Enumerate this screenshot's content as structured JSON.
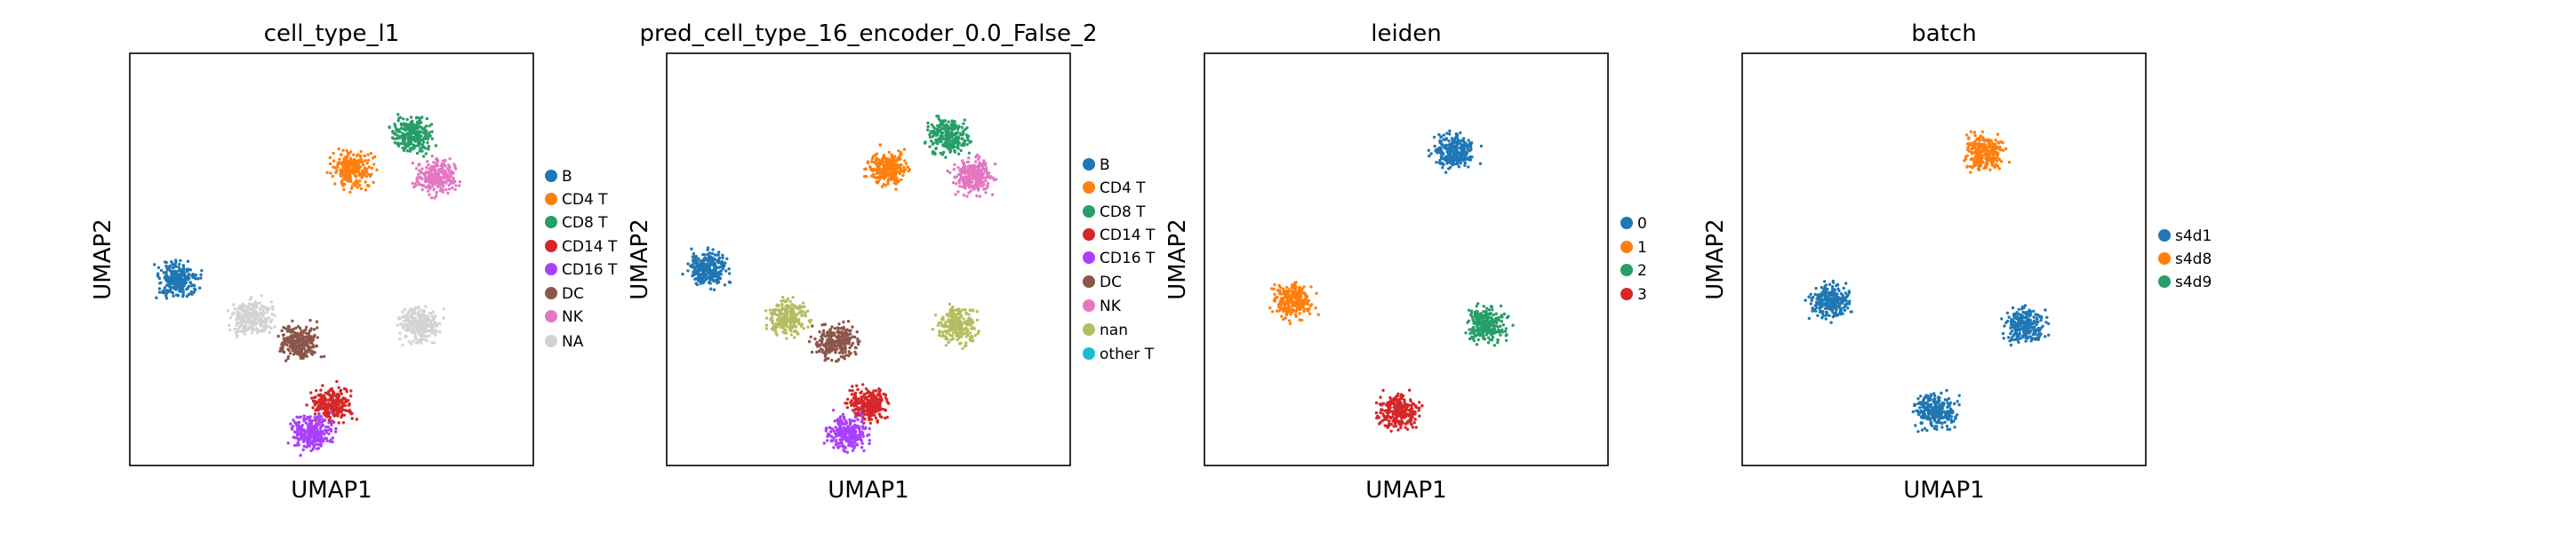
{
  "chart_data": [
    {
      "type": "scatter",
      "title": "cell_type_l1",
      "xlabel": "UMAP1",
      "ylabel": "UMAP2",
      "grid": false,
      "legend_position": "right",
      "categories": [
        {
          "label": "B",
          "color": "#1f77b4"
        },
        {
          "label": "CD4 T",
          "color": "#ff7f0e"
        },
        {
          "label": "CD8 T",
          "color": "#279e68"
        },
        {
          "label": "CD14 T",
          "color": "#d62728"
        },
        {
          "label": "CD16 T",
          "color": "#aa40fc"
        },
        {
          "label": "DC",
          "color": "#8c564b"
        },
        {
          "label": "NK",
          "color": "#e377c2"
        },
        {
          "label": "NA",
          "color": "#d3d3d3"
        }
      ],
      "clusters": [
        {
          "category": "CD4 T",
          "x": 0.55,
          "y": 0.72
        },
        {
          "category": "CD8 T",
          "x": 0.7,
          "y": 0.8
        },
        {
          "category": "NK",
          "x": 0.76,
          "y": 0.7
        },
        {
          "category": "B",
          "x": 0.12,
          "y": 0.45
        },
        {
          "category": "NA",
          "x": 0.3,
          "y": 0.36
        },
        {
          "category": "NA",
          "x": 0.72,
          "y": 0.34
        },
        {
          "category": "DC",
          "x": 0.42,
          "y": 0.3
        },
        {
          "category": "CD14 T",
          "x": 0.5,
          "y": 0.15
        },
        {
          "category": "CD16 T",
          "x": 0.45,
          "y": 0.08
        }
      ]
    },
    {
      "type": "scatter",
      "title": "pred_cell_type_16_encoder_0.0_False_2",
      "xlabel": "UMAP1",
      "ylabel": "UMAP2",
      "grid": false,
      "legend_position": "right",
      "categories": [
        {
          "label": "B",
          "color": "#1f77b4"
        },
        {
          "label": "CD4 T",
          "color": "#ff7f0e"
        },
        {
          "label": "CD8 T",
          "color": "#279e68"
        },
        {
          "label": "CD14 T",
          "color": "#d62728"
        },
        {
          "label": "CD16 T",
          "color": "#aa40fc"
        },
        {
          "label": "DC",
          "color": "#8c564b"
        },
        {
          "label": "NK",
          "color": "#e377c2"
        },
        {
          "label": "nan",
          "color": "#b5bd61"
        },
        {
          "label": "other T",
          "color": "#17becf"
        }
      ],
      "clusters": [
        {
          "category": "CD4 T",
          "x": 0.55,
          "y": 0.72
        },
        {
          "category": "CD8 T",
          "x": 0.7,
          "y": 0.8
        },
        {
          "category": "NK",
          "x": 0.76,
          "y": 0.7
        },
        {
          "category": "B",
          "x": 0.1,
          "y": 0.48
        },
        {
          "category": "nan",
          "x": 0.3,
          "y": 0.36
        },
        {
          "category": "nan",
          "x": 0.72,
          "y": 0.34
        },
        {
          "category": "DC",
          "x": 0.42,
          "y": 0.3
        },
        {
          "category": "CD14 T",
          "x": 0.5,
          "y": 0.15
        },
        {
          "category": "CD16 T",
          "x": 0.45,
          "y": 0.08
        }
      ]
    },
    {
      "type": "scatter",
      "title": "leiden",
      "xlabel": "UMAP1",
      "ylabel": "UMAP2",
      "grid": false,
      "legend_position": "right",
      "categories": [
        {
          "label": "0",
          "color": "#1f77b4"
        },
        {
          "label": "1",
          "color": "#ff7f0e"
        },
        {
          "label": "2",
          "color": "#279e68"
        },
        {
          "label": "3",
          "color": "#d62728"
        }
      ],
      "clusters": [
        {
          "category": "0",
          "x": 0.62,
          "y": 0.76
        },
        {
          "category": "1",
          "x": 0.22,
          "y": 0.4
        },
        {
          "category": "2",
          "x": 0.7,
          "y": 0.34
        },
        {
          "category": "3",
          "x": 0.48,
          "y": 0.13
        }
      ]
    },
    {
      "type": "scatter",
      "title": "batch",
      "xlabel": "UMAP1",
      "ylabel": "UMAP2",
      "grid": false,
      "legend_position": "right",
      "categories": [
        {
          "label": "s4d1",
          "color": "#1f77b4"
        },
        {
          "label": "s4d8",
          "color": "#ff7f0e"
        },
        {
          "label": "s4d9",
          "color": "#279e68"
        }
      ],
      "clusters": [
        {
          "category": "s4d8",
          "x": 0.6,
          "y": 0.76
        },
        {
          "category": "s4d1",
          "x": 0.22,
          "y": 0.4
        },
        {
          "category": "s4d1",
          "x": 0.7,
          "y": 0.34
        },
        {
          "category": "s4d1",
          "x": 0.48,
          "y": 0.13
        }
      ]
    }
  ]
}
